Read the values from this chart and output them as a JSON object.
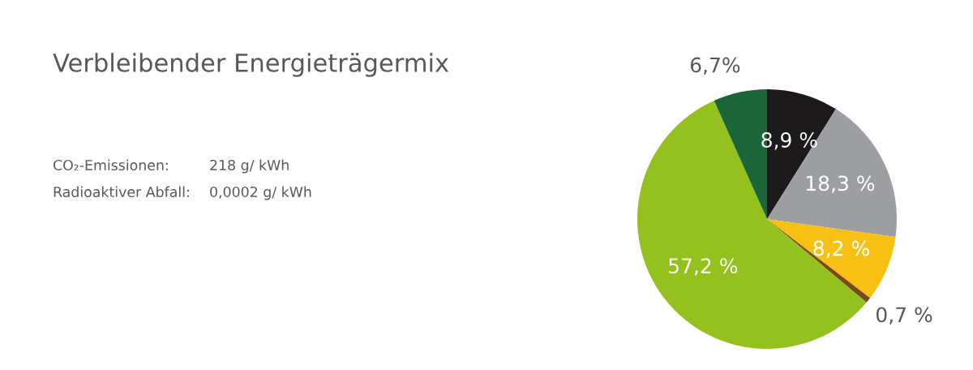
{
  "chart_data": {
    "type": "pie",
    "title": "Verbleibender Energieträgermix",
    "annotations": [
      "CO₂-Emissionen:",
      "218 g/ kWh",
      "Radioaktiver Abfall:",
      "0,0002 g/ kWh"
    ],
    "categories": [
      null,
      null,
      null,
      null,
      null,
      null
    ],
    "values": [
      8.9,
      18.3,
      8.2,
      0.7,
      57.2,
      6.7
    ],
    "value_labels": [
      "8,9 %",
      "18,3 %",
      "8,2 %",
      "0,7 %",
      "57,2 %",
      "6,7%"
    ],
    "colors": [
      "#1d1a1b",
      "#9d9ea2",
      "#f8c012",
      "#7a4a1f",
      "#95c11f",
      "#1a6638"
    ],
    "legend": false
  }
}
